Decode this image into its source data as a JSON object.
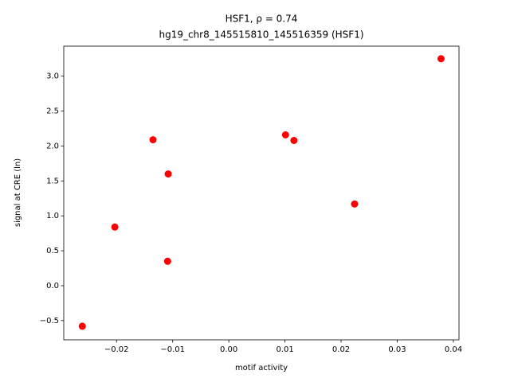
{
  "chart_data": {
    "type": "scatter",
    "title": "HSF1, ρ = 0.74",
    "subtitle": "hg19_chr8_145515810_145516359 (HSF1)",
    "x_label": "motif activity",
    "y_label": "signal at CRE (ln)",
    "color": "#ff0000",
    "x": [
      -0.0261,
      -0.0203,
      -0.0135,
      -0.0108,
      -0.0109,
      0.0101,
      0.0116,
      0.0224,
      0.0378
    ],
    "values": [
      -0.58,
      0.84,
      2.09,
      1.6,
      0.35,
      2.16,
      2.08,
      1.17,
      3.25
    ],
    "xlim": [
      -0.0294,
      0.041
    ],
    "ylim": [
      -0.775,
      3.43
    ],
    "xticks": [
      {
        "value": -0.02,
        "label": "−0.02"
      },
      {
        "value": -0.01,
        "label": "−0.01"
      },
      {
        "value": 0,
        "label": "0.00"
      },
      {
        "value": 0.01,
        "label": "0.01"
      },
      {
        "value": 0.02,
        "label": "0.02"
      },
      {
        "value": 0.03,
        "label": "0.03"
      },
      {
        "value": 0.04,
        "label": "0.04"
      }
    ],
    "yticks": [
      {
        "value": -0.5,
        "label": "−0.5"
      },
      {
        "value": 0,
        "label": "0.0"
      },
      {
        "value": 0.5,
        "label": "0.5"
      },
      {
        "value": 1,
        "label": "1.0"
      },
      {
        "value": 1.5,
        "label": "1.5"
      },
      {
        "value": 2,
        "label": "2.0"
      },
      {
        "value": 2.5,
        "label": "2.5"
      },
      {
        "value": 3,
        "label": "3.0"
      }
    ]
  }
}
